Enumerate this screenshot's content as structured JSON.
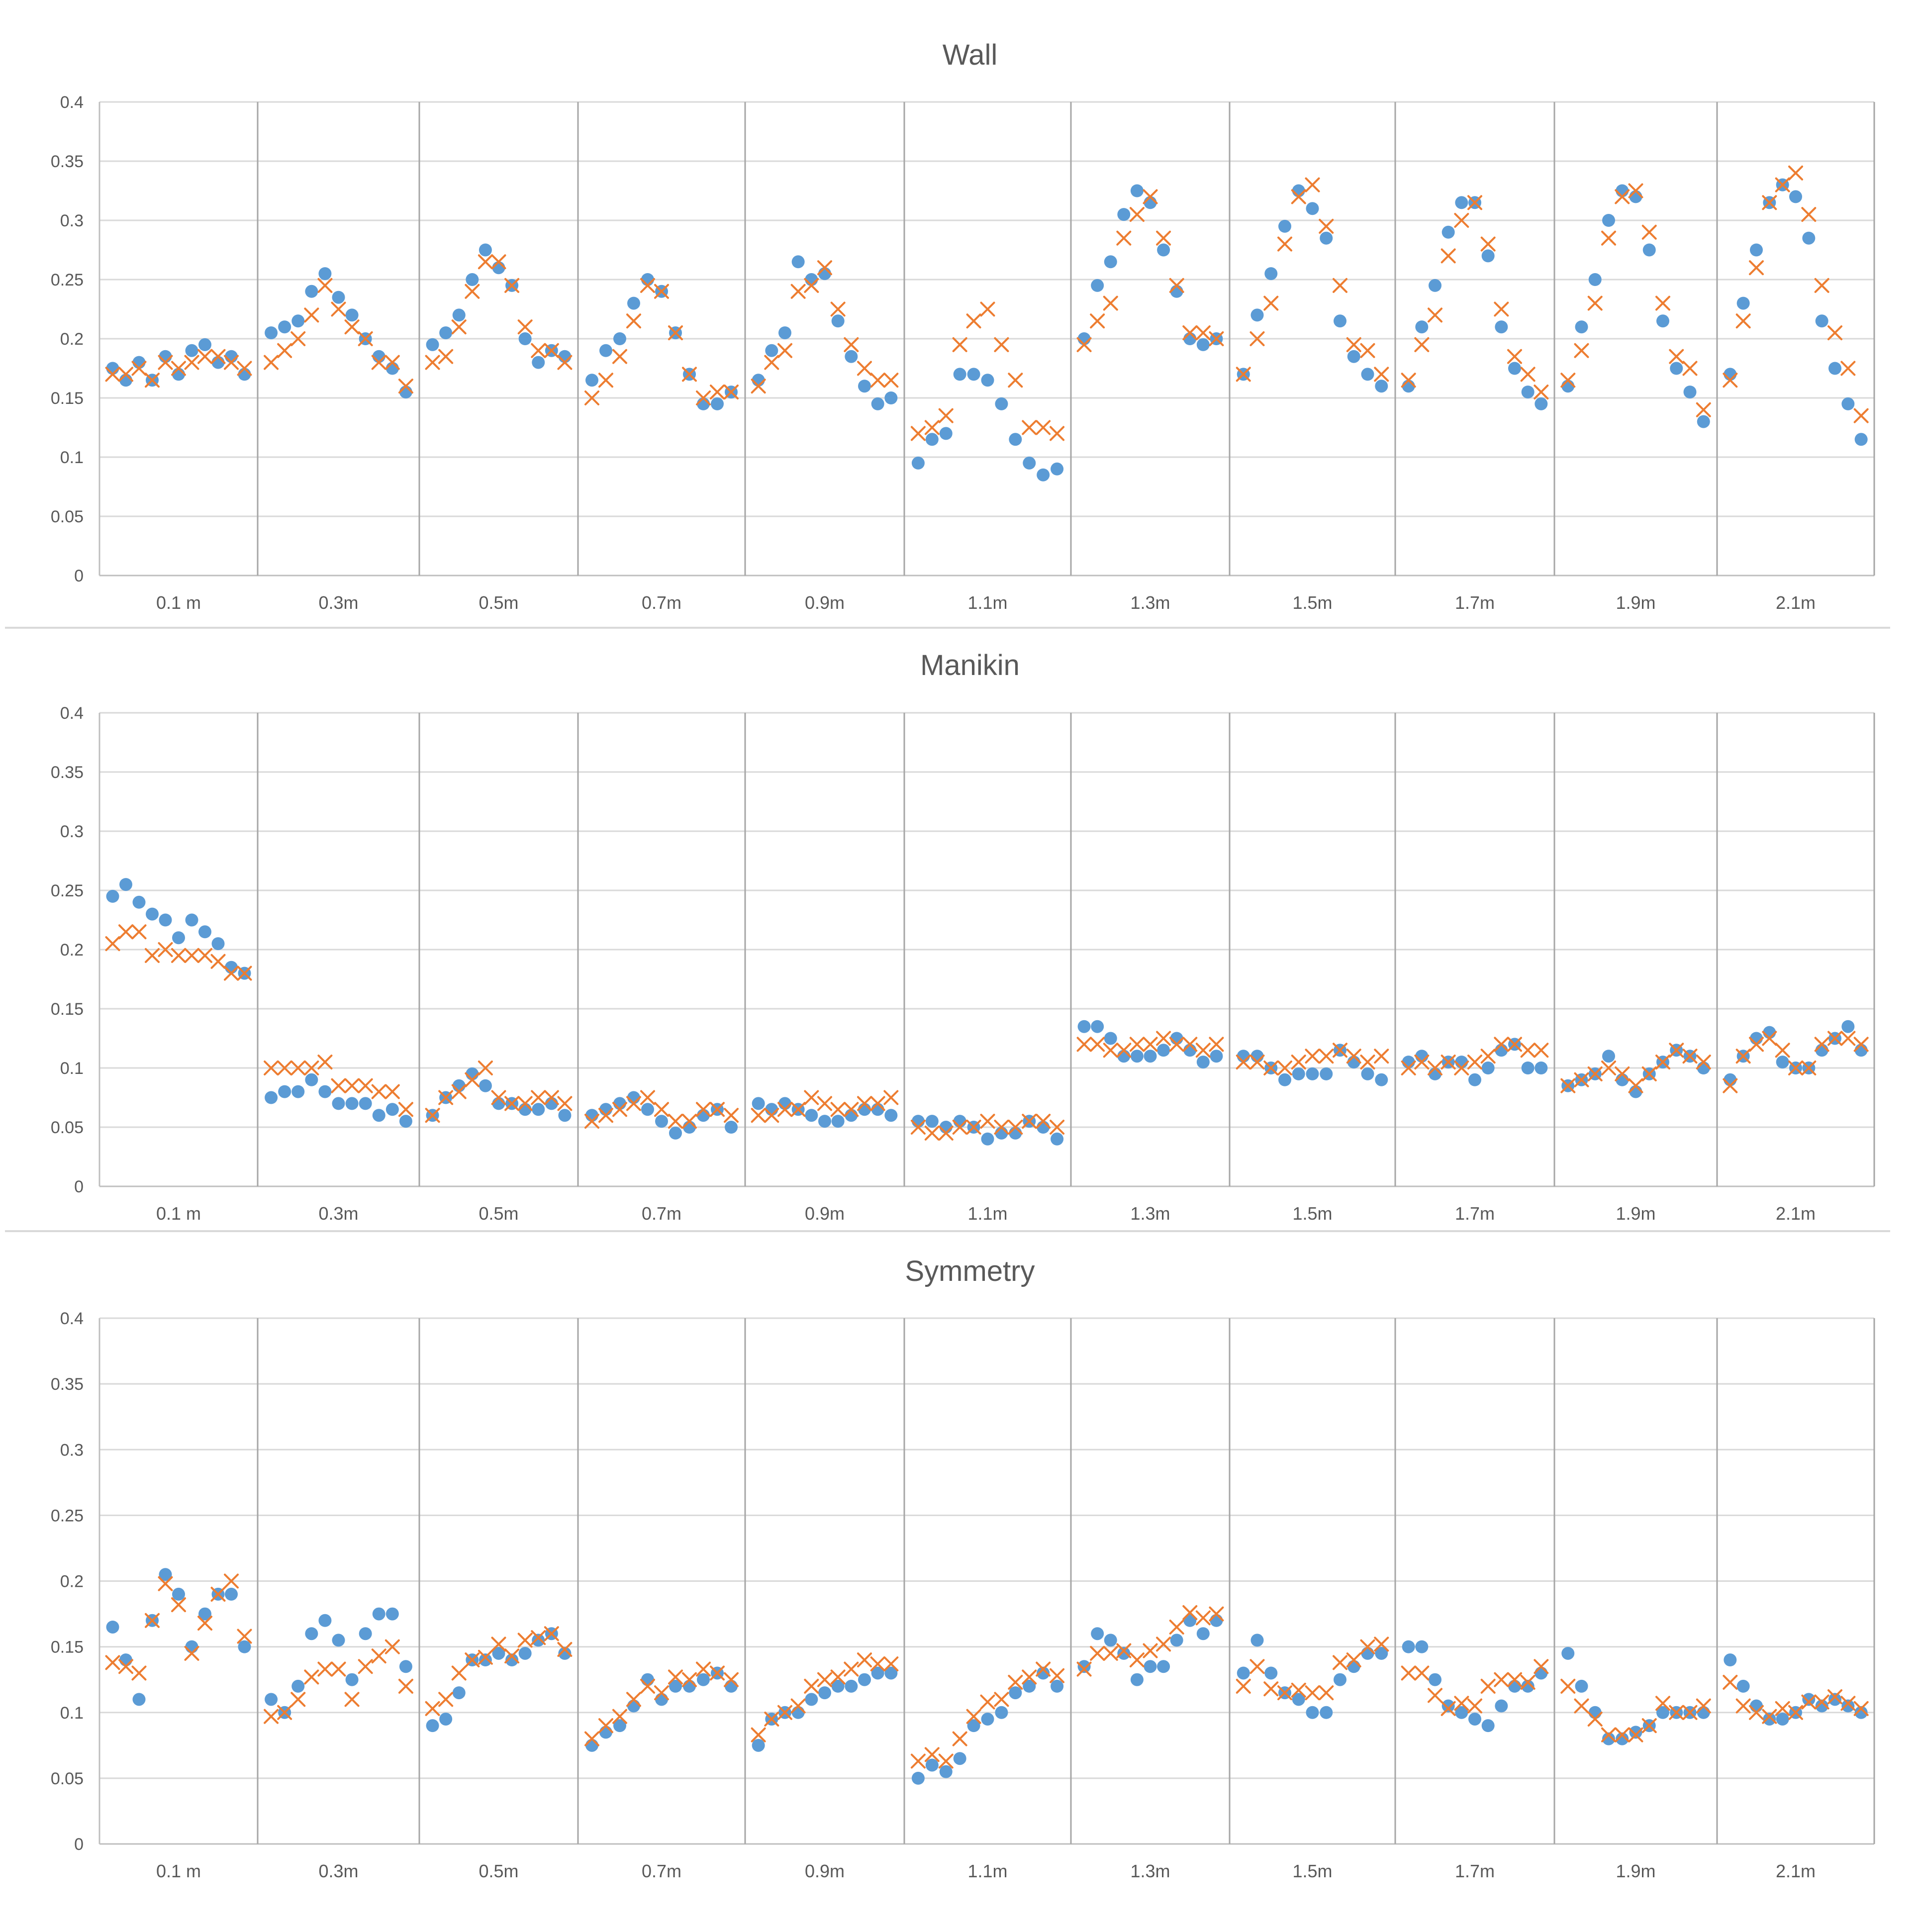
{
  "colors": {
    "dot_series": "#5B9BD5",
    "cross_series": "#ED7D31",
    "grid": "#d9d9d9",
    "group_separator": "#a6a6a6",
    "text": "#595959"
  },
  "chart_data": [
    {
      "type": "scatter",
      "title": "Wall",
      "xlabel": "",
      "ylabel": "",
      "ylim": [
        0,
        0.4
      ],
      "yticks": [
        "0",
        "0.05",
        "0.1",
        "0.15",
        "0.2",
        "0.25",
        "0.3",
        "0.35",
        "0.4"
      ],
      "categories": [
        "0.1 m",
        "0.3m",
        "0.5m",
        "0.7m",
        "0.9m",
        "1.1m",
        "1.3m",
        "1.5m",
        "1.7m",
        "1.9m",
        "2.1m"
      ],
      "grid": true,
      "legend": "none",
      "series": [
        {
          "marker": "dot",
          "color": "#5B9BD5",
          "groups": [
            [
              0.175,
              0.165,
              0.18,
              0.165,
              0.185,
              0.17,
              0.19,
              0.195,
              0.18,
              0.185,
              0.17
            ],
            [
              0.205,
              0.21,
              0.215,
              0.24,
              0.255,
              0.235,
              0.22,
              0.2,
              0.185,
              0.175,
              0.155
            ],
            [
              0.195,
              0.205,
              0.22,
              0.25,
              0.275,
              0.26,
              0.245,
              0.2,
              0.18,
              0.19,
              0.185
            ],
            [
              0.165,
              0.19,
              0.2,
              0.23,
              0.25,
              0.24,
              0.205,
              0.17,
              0.145,
              0.145,
              0.155
            ],
            [
              0.165,
              0.19,
              0.205,
              0.265,
              0.25,
              0.255,
              0.215,
              0.185,
              0.16,
              0.145,
              0.15
            ],
            [
              0.095,
              0.115,
              0.12,
              0.17,
              0.17,
              0.165,
              0.145,
              0.115,
              0.095,
              0.085,
              0.09
            ],
            [
              0.2,
              0.245,
              0.265,
              0.305,
              0.325,
              0.315,
              0.275,
              0.24,
              0.2,
              0.195,
              0.2
            ],
            [
              0.17,
              0.22,
              0.255,
              0.295,
              0.325,
              0.31,
              0.285,
              0.215,
              0.185,
              0.17,
              0.16
            ],
            [
              0.16,
              0.21,
              0.245,
              0.29,
              0.315,
              0.315,
              0.27,
              0.21,
              0.175,
              0.155,
              0.145
            ],
            [
              0.16,
              0.21,
              0.25,
              0.3,
              0.325,
              0.32,
              0.275,
              0.215,
              0.175,
              0.155,
              0.13
            ],
            [
              0.17,
              0.23,
              0.275,
              0.315,
              0.33,
              0.32,
              0.285,
              0.215,
              0.175,
              0.145,
              0.115
            ]
          ]
        },
        {
          "marker": "cross",
          "color": "#ED7D31",
          "groups": [
            [
              0.17,
              0.17,
              0.175,
              0.165,
              0.18,
              0.175,
              0.18,
              0.185,
              0.185,
              0.18,
              0.175
            ],
            [
              0.18,
              0.19,
              0.2,
              0.22,
              0.245,
              0.225,
              0.21,
              0.2,
              0.18,
              0.18,
              0.16
            ],
            [
              0.18,
              0.185,
              0.21,
              0.24,
              0.265,
              0.265,
              0.245,
              0.21,
              0.19,
              0.19,
              0.18
            ],
            [
              0.15,
              0.165,
              0.185,
              0.215,
              0.245,
              0.24,
              0.205,
              0.17,
              0.15,
              0.155,
              0.155
            ],
            [
              0.16,
              0.18,
              0.19,
              0.24,
              0.245,
              0.26,
              0.225,
              0.195,
              0.175,
              0.165,
              0.165
            ],
            [
              0.12,
              0.125,
              0.135,
              0.195,
              0.215,
              0.225,
              0.195,
              0.165,
              0.125,
              0.125,
              0.12
            ],
            [
              0.195,
              0.215,
              0.23,
              0.285,
              0.305,
              0.32,
              0.285,
              0.245,
              0.205,
              0.205,
              0.2
            ],
            [
              0.17,
              0.2,
              0.23,
              0.28,
              0.32,
              0.33,
              0.295,
              0.245,
              0.195,
              0.19,
              0.17
            ],
            [
              0.165,
              0.195,
              0.22,
              0.27,
              0.3,
              0.315,
              0.28,
              0.225,
              0.185,
              0.17,
              0.155
            ],
            [
              0.165,
              0.19,
              0.23,
              0.285,
              0.32,
              0.325,
              0.29,
              0.23,
              0.185,
              0.175,
              0.14
            ],
            [
              0.165,
              0.215,
              0.26,
              0.315,
              0.33,
              0.34,
              0.305,
              0.245,
              0.205,
              0.175,
              0.135
            ]
          ]
        }
      ]
    },
    {
      "type": "scatter",
      "title": "Manikin",
      "xlabel": "",
      "ylabel": "",
      "ylim": [
        0,
        0.4
      ],
      "yticks": [
        "0",
        "0.05",
        "0.1",
        "0.15",
        "0.2",
        "0.25",
        "0.3",
        "0.35",
        "0.4"
      ],
      "categories": [
        "0.1 m",
        "0.3m",
        "0.5m",
        "0.7m",
        "0.9m",
        "1.1m",
        "1.3m",
        "1.5m",
        "1.7m",
        "1.9m",
        "2.1m"
      ],
      "grid": true,
      "legend": "none",
      "series": [
        {
          "marker": "dot",
          "color": "#5B9BD5",
          "groups": [
            [
              0.245,
              0.255,
              0.24,
              0.23,
              0.225,
              0.21,
              0.225,
              0.215,
              0.205,
              0.185,
              0.18
            ],
            [
              0.075,
              0.08,
              0.08,
              0.09,
              0.08,
              0.07,
              0.07,
              0.07,
              0.06,
              0.065,
              0.055
            ],
            [
              0.06,
              0.075,
              0.085,
              0.095,
              0.085,
              0.07,
              0.07,
              0.065,
              0.065,
              0.07,
              0.06
            ],
            [
              0.06,
              0.065,
              0.07,
              0.075,
              0.065,
              0.055,
              0.045,
              0.05,
              0.06,
              0.065,
              0.05
            ],
            [
              0.07,
              0.065,
              0.07,
              0.065,
              0.06,
              0.055,
              0.055,
              0.06,
              0.065,
              0.065,
              0.06
            ],
            [
              0.055,
              0.055,
              0.05,
              0.055,
              0.05,
              0.04,
              0.045,
              0.045,
              0.055,
              0.05,
              0.04
            ],
            [
              0.135,
              0.135,
              0.125,
              0.11,
              0.11,
              0.11,
              0.115,
              0.125,
              0.115,
              0.105,
              0.11
            ],
            [
              0.11,
              0.11,
              0.1,
              0.09,
              0.095,
              0.095,
              0.095,
              0.115,
              0.105,
              0.095,
              0.09
            ],
            [
              0.105,
              0.11,
              0.095,
              0.105,
              0.105,
              0.09,
              0.1,
              0.115,
              0.12,
              0.1,
              0.1
            ],
            [
              0.085,
              0.09,
              0.095,
              0.11,
              0.09,
              0.08,
              0.095,
              0.105,
              0.115,
              0.11,
              0.1
            ],
            [
              0.09,
              0.11,
              0.125,
              0.13,
              0.105,
              0.1,
              0.1,
              0.115,
              0.125,
              0.135,
              0.115
            ]
          ]
        },
        {
          "marker": "cross",
          "color": "#ED7D31",
          "groups": [
            [
              0.205,
              0.215,
              0.215,
              0.195,
              0.2,
              0.195,
              0.195,
              0.195,
              0.19,
              0.18,
              0.18
            ],
            [
              0.1,
              0.1,
              0.1,
              0.1,
              0.105,
              0.085,
              0.085,
              0.085,
              0.08,
              0.08,
              0.065
            ],
            [
              0.06,
              0.075,
              0.08,
              0.09,
              0.1,
              0.075,
              0.07,
              0.07,
              0.075,
              0.075,
              0.07
            ],
            [
              0.055,
              0.06,
              0.065,
              0.07,
              0.075,
              0.065,
              0.055,
              0.055,
              0.065,
              0.065,
              0.06
            ],
            [
              0.06,
              0.06,
              0.065,
              0.065,
              0.075,
              0.07,
              0.065,
              0.065,
              0.07,
              0.07,
              0.075
            ],
            [
              0.05,
              0.045,
              0.045,
              0.05,
              0.05,
              0.055,
              0.05,
              0.05,
              0.055,
              0.055,
              0.05
            ],
            [
              0.12,
              0.12,
              0.115,
              0.115,
              0.12,
              0.12,
              0.125,
              0.12,
              0.12,
              0.115,
              0.12
            ],
            [
              0.105,
              0.105,
              0.1,
              0.1,
              0.105,
              0.11,
              0.11,
              0.115,
              0.11,
              0.105,
              0.11
            ],
            [
              0.1,
              0.105,
              0.1,
              0.105,
              0.1,
              0.105,
              0.11,
              0.12,
              0.12,
              0.115,
              0.115
            ],
            [
              0.085,
              0.09,
              0.095,
              0.1,
              0.095,
              0.085,
              0.095,
              0.105,
              0.115,
              0.11,
              0.105
            ],
            [
              0.085,
              0.11,
              0.12,
              0.125,
              0.115,
              0.1,
              0.1,
              0.12,
              0.125,
              0.125,
              0.12
            ]
          ]
        }
      ]
    },
    {
      "type": "scatter",
      "title": "Symmetry",
      "xlabel": "",
      "ylabel": "",
      "ylim": [
        0,
        0.4
      ],
      "yticks": [
        "0",
        "0.05",
        "0.1",
        "0.15",
        "0.2",
        "0.25",
        "0.3",
        "0.35",
        "0.4"
      ],
      "categories": [
        "0.1 m",
        "0.3m",
        "0.5m",
        "0.7m",
        "0.9m",
        "1.1m",
        "1.3m",
        "1.5m",
        "1.7m",
        "1.9m",
        "2.1m"
      ],
      "grid": true,
      "legend": "none",
      "series": [
        {
          "marker": "dot",
          "color": "#5B9BD5",
          "groups": [
            [
              0.165,
              0.14,
              0.11,
              0.17,
              0.205,
              0.19,
              0.15,
              0.175,
              0.19,
              0.19,
              0.15
            ],
            [
              0.11,
              0.1,
              0.12,
              0.16,
              0.17,
              0.155,
              0.125,
              0.16,
              0.175,
              0.175,
              0.135
            ],
            [
              0.09,
              0.095,
              0.115,
              0.14,
              0.14,
              0.145,
              0.14,
              0.145,
              0.155,
              0.16,
              0.145
            ],
            [
              0.075,
              0.085,
              0.09,
              0.105,
              0.125,
              0.11,
              0.12,
              0.12,
              0.125,
              0.13,
              0.12
            ],
            [
              0.075,
              0.095,
              0.1,
              0.1,
              0.11,
              0.115,
              0.12,
              0.12,
              0.125,
              0.13,
              0.13
            ],
            [
              0.05,
              0.06,
              0.055,
              0.065,
              0.09,
              0.095,
              0.1,
              0.115,
              0.12,
              0.13,
              0.12
            ],
            [
              0.135,
              0.16,
              0.155,
              0.145,
              0.125,
              0.135,
              0.135,
              0.155,
              0.17,
              0.16,
              0.17
            ],
            [
              0.13,
              0.155,
              0.13,
              0.115,
              0.11,
              0.1,
              0.1,
              0.125,
              0.135,
              0.145,
              0.145
            ],
            [
              0.15,
              0.15,
              0.125,
              0.105,
              0.1,
              0.095,
              0.09,
              0.105,
              0.12,
              0.12,
              0.13
            ],
            [
              0.145,
              0.12,
              0.1,
              0.08,
              0.08,
              0.085,
              0.09,
              0.1,
              0.1,
              0.1,
              0.1
            ],
            [
              0.14,
              0.12,
              0.105,
              0.095,
              0.095,
              0.1,
              0.11,
              0.105,
              0.11,
              0.105,
              0.1
            ]
          ]
        },
        {
          "marker": "cross",
          "color": "#ED7D31",
          "groups": [
            [
              0.138,
              0.135,
              0.13,
              0.17,
              0.198,
              0.182,
              0.145,
              0.168,
              0.19,
              0.2,
              0.158
            ],
            [
              0.097,
              0.1,
              0.11,
              0.127,
              0.133,
              0.133,
              0.11,
              0.135,
              0.143,
              0.15,
              0.12
            ],
            [
              0.103,
              0.11,
              0.13,
              0.14,
              0.142,
              0.152,
              0.143,
              0.155,
              0.157,
              0.16,
              0.148
            ],
            [
              0.08,
              0.09,
              0.097,
              0.11,
              0.12,
              0.115,
              0.127,
              0.125,
              0.133,
              0.13,
              0.125
            ],
            [
              0.083,
              0.095,
              0.1,
              0.105,
              0.12,
              0.125,
              0.127,
              0.133,
              0.14,
              0.137,
              0.137
            ],
            [
              0.063,
              0.068,
              0.063,
              0.08,
              0.097,
              0.108,
              0.11,
              0.123,
              0.127,
              0.133,
              0.128
            ],
            [
              0.133,
              0.145,
              0.145,
              0.147,
              0.14,
              0.147,
              0.152,
              0.165,
              0.176,
              0.172,
              0.175
            ],
            [
              0.12,
              0.135,
              0.118,
              0.115,
              0.117,
              0.115,
              0.115,
              0.138,
              0.14,
              0.15,
              0.152
            ],
            [
              0.13,
              0.13,
              0.113,
              0.103,
              0.107,
              0.105,
              0.12,
              0.125,
              0.125,
              0.123,
              0.135
            ],
            [
              0.12,
              0.105,
              0.095,
              0.083,
              0.083,
              0.083,
              0.09,
              0.107,
              0.1,
              0.1,
              0.105
            ],
            [
              0.123,
              0.105,
              0.1,
              0.097,
              0.103,
              0.1,
              0.108,
              0.108,
              0.112,
              0.107,
              0.103
            ]
          ]
        }
      ]
    }
  ]
}
